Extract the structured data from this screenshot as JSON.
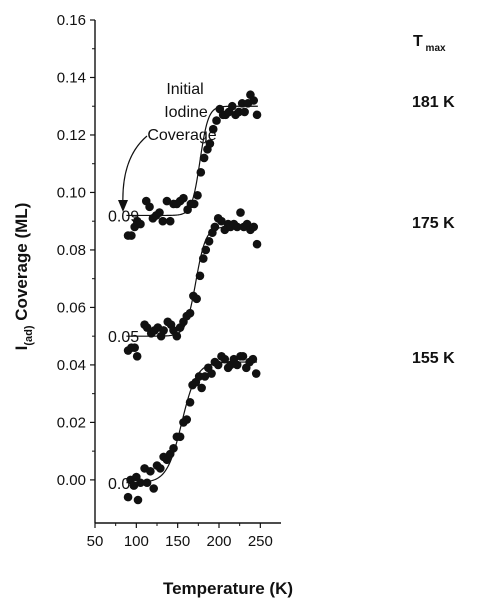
{
  "chart_data": {
    "type": "scatter",
    "title": "",
    "xlabel": "Temperature (K)",
    "ylabel": {
      "prefix": "I",
      "sub": "(ad)",
      "rest": " Coverage  (ML)"
    },
    "xlim": [
      50,
      275
    ],
    "ylim": [
      -0.015,
      0.16
    ],
    "xticks": [
      50,
      100,
      150,
      200,
      250
    ],
    "yticks": [
      "0.00",
      "0.02",
      "0.04",
      "0.06",
      "0.08",
      "0.10",
      "0.12",
      "0.14",
      "0.16"
    ],
    "grid": false,
    "annotation": {
      "lines": [
        "Initial",
        "Iodine",
        "Coverage"
      ]
    },
    "tmax_header": {
      "main": "T",
      "sub": "max"
    },
    "series": [
      {
        "name": "0.00",
        "tmax": "155 K",
        "fit": {
          "low": -0.001,
          "high": 0.041,
          "mid": 155,
          "width": 9
        },
        "points": [
          [
            90,
            -0.006
          ],
          [
            93,
            0.0
          ],
          [
            97,
            -0.002
          ],
          [
            100,
            0.001
          ],
          [
            102,
            -0.007
          ],
          [
            105,
            -0.001
          ],
          [
            110,
            0.004
          ],
          [
            113,
            -0.001
          ],
          [
            117,
            0.003
          ],
          [
            121,
            -0.003
          ],
          [
            125,
            0.005
          ],
          [
            129,
            0.004
          ],
          [
            133,
            0.008
          ],
          [
            137,
            0.007
          ],
          [
            141,
            0.009
          ],
          [
            145,
            0.011
          ],
          [
            149,
            0.015
          ],
          [
            153,
            0.015
          ],
          [
            157,
            0.02
          ],
          [
            161,
            0.021
          ],
          [
            165,
            0.027
          ],
          [
            168,
            0.033
          ],
          [
            172,
            0.034
          ],
          [
            176,
            0.036
          ],
          [
            179,
            0.032
          ],
          [
            183,
            0.036
          ],
          [
            187,
            0.039
          ],
          [
            191,
            0.037
          ],
          [
            195,
            0.041
          ],
          [
            199,
            0.04
          ],
          [
            203,
            0.043
          ],
          [
            207,
            0.042
          ],
          [
            211,
            0.039
          ],
          [
            214,
            0.04
          ],
          [
            218,
            0.042
          ],
          [
            222,
            0.04
          ],
          [
            226,
            0.043
          ],
          [
            229,
            0.043
          ],
          [
            233,
            0.039
          ],
          [
            237,
            0.041
          ],
          [
            241,
            0.042
          ],
          [
            245,
            0.037
          ]
        ]
      },
      {
        "name": "0.05",
        "tmax": "175 K",
        "fit": {
          "low": 0.05,
          "high": 0.088,
          "mid": 172,
          "width": 6
        },
        "points": [
          [
            90,
            0.045
          ],
          [
            94,
            0.046
          ],
          [
            98,
            0.046
          ],
          [
            101,
            0.043
          ],
          [
            110,
            0.054
          ],
          [
            113,
            0.053
          ],
          [
            118,
            0.051
          ],
          [
            122,
            0.052
          ],
          [
            126,
            0.053
          ],
          [
            130,
            0.05
          ],
          [
            133,
            0.052
          ],
          [
            138,
            0.055
          ],
          [
            142,
            0.054
          ],
          [
            145,
            0.052
          ],
          [
            149,
            0.05
          ],
          [
            153,
            0.053
          ],
          [
            157,
            0.055
          ],
          [
            161,
            0.057
          ],
          [
            165,
            0.058
          ],
          [
            169,
            0.064
          ],
          [
            173,
            0.063
          ],
          [
            177,
            0.071
          ],
          [
            181,
            0.077
          ],
          [
            184,
            0.08
          ],
          [
            188,
            0.083
          ],
          [
            192,
            0.086
          ],
          [
            195,
            0.088
          ],
          [
            199,
            0.091
          ],
          [
            203,
            0.09
          ],
          [
            207,
            0.087
          ],
          [
            211,
            0.089
          ],
          [
            214,
            0.088
          ],
          [
            218,
            0.089
          ],
          [
            222,
            0.088
          ],
          [
            226,
            0.093
          ],
          [
            230,
            0.088
          ],
          [
            234,
            0.089
          ],
          [
            238,
            0.087
          ],
          [
            242,
            0.088
          ],
          [
            246,
            0.082
          ]
        ]
      },
      {
        "name": "0.09",
        "tmax": "181 K",
        "fit": {
          "low": 0.092,
          "high": 0.13,
          "mid": 177,
          "width": 5
        },
        "points": [
          [
            90,
            0.085
          ],
          [
            94,
            0.085
          ],
          [
            98,
            0.088
          ],
          [
            101,
            0.09
          ],
          [
            105,
            0.089
          ],
          [
            112,
            0.097
          ],
          [
            116,
            0.095
          ],
          [
            120,
            0.091
          ],
          [
            124,
            0.092
          ],
          [
            128,
            0.093
          ],
          [
            132,
            0.09
          ],
          [
            137,
            0.097
          ],
          [
            141,
            0.09
          ],
          [
            145,
            0.096
          ],
          [
            149,
            0.096
          ],
          [
            153,
            0.097
          ],
          [
            157,
            0.098
          ],
          [
            162,
            0.094
          ],
          [
            166,
            0.096
          ],
          [
            170,
            0.096
          ],
          [
            174,
            0.099
          ],
          [
            178,
            0.107
          ],
          [
            182,
            0.112
          ],
          [
            186,
            0.115
          ],
          [
            189,
            0.117
          ],
          [
            193,
            0.122
          ],
          [
            197,
            0.125
          ],
          [
            201,
            0.129
          ],
          [
            205,
            0.127
          ],
          [
            208,
            0.127
          ],
          [
            212,
            0.128
          ],
          [
            216,
            0.13
          ],
          [
            220,
            0.127
          ],
          [
            224,
            0.128
          ],
          [
            228,
            0.131
          ],
          [
            231,
            0.128
          ],
          [
            235,
            0.131
          ],
          [
            238,
            0.134
          ],
          [
            242,
            0.132
          ],
          [
            246,
            0.127
          ]
        ]
      }
    ]
  }
}
